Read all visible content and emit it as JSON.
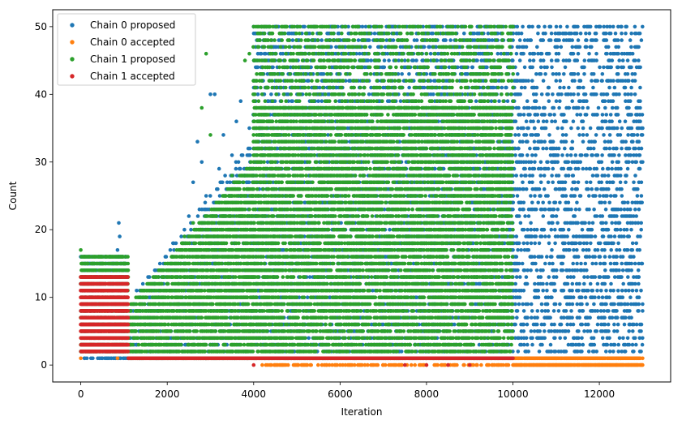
{
  "chart_data": {
    "type": "scatter",
    "title": "",
    "xlabel": "Iteration",
    "ylabel": "Count",
    "xlim": [
      -650,
      13650
    ],
    "ylim": [
      -2.5,
      52.5
    ],
    "xticks": [
      0,
      2000,
      4000,
      6000,
      8000,
      10000,
      12000
    ],
    "yticks": [
      0,
      10,
      20,
      30,
      40,
      50
    ],
    "xtick_labels": [
      "0",
      "2000",
      "4000",
      "6000",
      "8000",
      "10000",
      "12000"
    ],
    "ytick_labels": [
      "0",
      "10",
      "20",
      "30",
      "40",
      "50"
    ],
    "grid": false,
    "legend_position": "top-left",
    "series": [
      {
        "name": "Chain 0 proposed",
        "color": "#1f77b4",
        "points": [
          [
            0,
            8
          ],
          [
            100,
            5
          ],
          [
            150,
            12
          ],
          [
            250,
            3
          ],
          [
            300,
            15
          ],
          [
            400,
            7
          ],
          [
            500,
            10
          ],
          [
            550,
            13
          ],
          [
            650,
            6
          ],
          [
            750,
            9
          ],
          [
            850,
            17
          ],
          [
            880,
            21
          ],
          [
            900,
            19
          ],
          [
            950,
            11
          ],
          [
            1000,
            14
          ],
          [
            1050,
            4
          ],
          [
            1200,
            2
          ],
          [
            1400,
            4
          ],
          [
            1600,
            7
          ],
          [
            1800,
            10
          ],
          [
            2000,
            12
          ],
          [
            2200,
            14
          ],
          [
            2400,
            18
          ],
          [
            2500,
            22
          ],
          [
            2600,
            27
          ],
          [
            2700,
            33
          ],
          [
            2800,
            30
          ],
          [
            2900,
            25
          ],
          [
            3000,
            40
          ],
          [
            3100,
            40
          ],
          [
            3200,
            29
          ],
          [
            3300,
            34
          ],
          [
            3500,
            31
          ],
          [
            3600,
            36
          ],
          [
            3700,
            39
          ],
          [
            3800,
            28
          ],
          [
            3900,
            35
          ],
          [
            4000,
            37
          ],
          [
            4100,
            40
          ],
          [
            4200,
            44
          ],
          [
            4300,
            41
          ],
          [
            4400,
            47
          ],
          [
            4500,
            50
          ],
          [
            4600,
            43
          ],
          [
            4700,
            45
          ],
          [
            4800,
            49
          ],
          [
            5000,
            50
          ],
          [
            5200,
            46
          ],
          [
            5400,
            48
          ],
          [
            5600,
            42
          ],
          [
            5800,
            50
          ],
          [
            6000,
            44
          ],
          [
            6200,
            47
          ],
          [
            6400,
            50
          ],
          [
            6600,
            45
          ],
          [
            6800,
            49
          ],
          [
            7000,
            41
          ],
          [
            7200,
            50
          ],
          [
            7400,
            46
          ],
          [
            7600,
            38
          ],
          [
            7800,
            50
          ],
          [
            8000,
            43
          ],
          [
            8200,
            48
          ],
          [
            8400,
            37
          ],
          [
            8600,
            50
          ],
          [
            8800,
            44
          ],
          [
            9000,
            39
          ],
          [
            9200,
            47
          ],
          [
            9400,
            50
          ],
          [
            9600,
            36
          ],
          [
            9800,
            45
          ],
          [
            10000,
            49
          ],
          [
            10100,
            50
          ],
          [
            10200,
            41
          ],
          [
            10300,
            28
          ],
          [
            10400,
            16
          ],
          [
            10500,
            35
          ],
          [
            10600,
            50
          ],
          [
            10700,
            22
          ],
          [
            10800,
            9
          ],
          [
            10900,
            44
          ],
          [
            11000,
            31
          ],
          [
            11100,
            50
          ],
          [
            11200,
            12
          ],
          [
            11300,
            38
          ],
          [
            11400,
            25
          ],
          [
            11500,
            50
          ],
          [
            11600,
            6
          ],
          [
            11700,
            47
          ],
          [
            11800,
            19
          ],
          [
            11900,
            33
          ],
          [
            12000,
            50
          ],
          [
            12100,
            3
          ],
          [
            12200,
            42
          ],
          [
            12300,
            27
          ],
          [
            12400,
            14
          ],
          [
            12500,
            50
          ],
          [
            12600,
            36
          ],
          [
            12700,
            8
          ],
          [
            12800,
            45
          ],
          [
            12900,
            21
          ],
          [
            13000,
            30
          ],
          [
            5000,
            20
          ],
          [
            6000,
            25
          ],
          [
            7000,
            30
          ],
          [
            8000,
            18
          ],
          [
            9000,
            27
          ],
          [
            9500,
            33
          ],
          [
            4500,
            15
          ],
          [
            3500,
            12
          ],
          [
            10500,
            5
          ],
          [
            11500,
            2
          ],
          [
            12500,
            1
          ],
          [
            12900,
            13
          ]
        ]
      },
      {
        "name": "Chain 0 accepted",
        "color": "#ff7f0e",
        "points": [
          [
            0,
            1
          ],
          [
            150,
            2
          ],
          [
            300,
            3
          ],
          [
            500,
            2
          ],
          [
            700,
            3
          ],
          [
            850,
            1
          ],
          [
            1000,
            2
          ],
          [
            4200,
            0
          ],
          [
            5000,
            0
          ],
          [
            6000,
            0
          ],
          [
            7000,
            0
          ],
          [
            8000,
            0
          ],
          [
            9000,
            0
          ],
          [
            10000,
            1
          ],
          [
            10500,
            1
          ],
          [
            11000,
            1
          ],
          [
            11500,
            1
          ],
          [
            12000,
            1
          ],
          [
            12500,
            1
          ],
          [
            13000,
            1
          ],
          [
            10200,
            0
          ],
          [
            11000,
            0
          ],
          [
            12000,
            0
          ],
          [
            13000,
            0
          ]
        ]
      },
      {
        "name": "Chain 1 proposed",
        "color": "#2ca02c",
        "points": [
          [
            0,
            17
          ],
          [
            100,
            15
          ],
          [
            250,
            13
          ],
          [
            400,
            16
          ],
          [
            550,
            14
          ],
          [
            700,
            16
          ],
          [
            850,
            12
          ],
          [
            1000,
            15
          ],
          [
            1200,
            3
          ],
          [
            1500,
            6
          ],
          [
            1800,
            9
          ],
          [
            2000,
            13
          ],
          [
            2200,
            16
          ],
          [
            2400,
            19
          ],
          [
            2600,
            21
          ],
          [
            2800,
            38
          ],
          [
            2900,
            46
          ],
          [
            3000,
            34
          ],
          [
            3200,
            24
          ],
          [
            3500,
            28
          ],
          [
            3800,
            45
          ],
          [
            3900,
            46
          ],
          [
            4000,
            50
          ],
          [
            4500,
            30
          ],
          [
            5000,
            35
          ],
          [
            5500,
            38
          ],
          [
            6000,
            40
          ],
          [
            6500,
            44
          ],
          [
            7000,
            48
          ],
          [
            7500,
            50
          ],
          [
            8000,
            50
          ],
          [
            8500,
            49
          ],
          [
            9000,
            50
          ],
          [
            9500,
            50
          ],
          [
            10000,
            50
          ],
          [
            4000,
            10
          ],
          [
            5000,
            15
          ],
          [
            6000,
            20
          ],
          [
            7000,
            25
          ],
          [
            8000,
            30
          ],
          [
            9000,
            28
          ],
          [
            10000,
            20
          ]
        ]
      },
      {
        "name": "Chain 1 accepted",
        "color": "#d62728",
        "points": [
          [
            0,
            13
          ],
          [
            150,
            11
          ],
          [
            300,
            12
          ],
          [
            500,
            10
          ],
          [
            700,
            12
          ],
          [
            850,
            11
          ],
          [
            1000,
            12
          ],
          [
            1100,
            1
          ],
          [
            4000,
            0
          ],
          [
            7500,
            0
          ],
          [
            8000,
            0
          ],
          [
            8500,
            0
          ],
          [
            9000,
            0
          ],
          [
            10000,
            1
          ]
        ]
      }
    ],
    "bands": [
      {
        "series": 0,
        "x0": 0,
        "x1": 1100,
        "ylo": 1,
        "yhi": 16,
        "step": 14,
        "density": 0.45
      },
      {
        "series": 0,
        "x0": 1100,
        "x1": 4000,
        "ylo": 1,
        "yhi": 33,
        "step": 22,
        "density": 0.26,
        "ramp": true
      },
      {
        "series": 0,
        "x0": 4000,
        "x1": 10000,
        "ylo": 1,
        "yhi": 50,
        "step": 25,
        "density": 0.32
      },
      {
        "series": 0,
        "x0": 10000,
        "x1": 13000,
        "ylo": 2,
        "yhi": 50,
        "step": 28,
        "density": 0.3
      },
      {
        "series": 1,
        "x0": 10000,
        "x1": 13000,
        "ylo": 0,
        "yhi": 1,
        "step": 18,
        "density": 0.95
      },
      {
        "series": 1,
        "x0": 4200,
        "x1": 9900,
        "ylo": 0,
        "yhi": 0,
        "step": 30,
        "density": 0.55
      },
      {
        "series": 2,
        "x0": 0,
        "x1": 1100,
        "ylo": 2,
        "yhi": 16,
        "step": 14,
        "density": 0.55
      },
      {
        "series": 2,
        "x0": 1100,
        "x1": 4000,
        "ylo": 1,
        "yhi": 30,
        "step": 20,
        "density": 0.6,
        "ramp": true
      },
      {
        "series": 2,
        "x0": 4000,
        "x1": 10000,
        "ylo": 1,
        "yhi": 38,
        "step": 22,
        "density": 0.55
      },
      {
        "series": 2,
        "x0": 4000,
        "x1": 10000,
        "ylo": 38,
        "yhi": 50,
        "step": 24,
        "density": 0.28
      },
      {
        "series": 3,
        "x0": 0,
        "x1": 1100,
        "ylo": 2,
        "yhi": 13,
        "step": 13,
        "density": 0.9
      },
      {
        "series": 3,
        "x0": 1100,
        "x1": 10000,
        "ylo": 1,
        "yhi": 1,
        "step": 12,
        "density": 1.0
      }
    ]
  }
}
